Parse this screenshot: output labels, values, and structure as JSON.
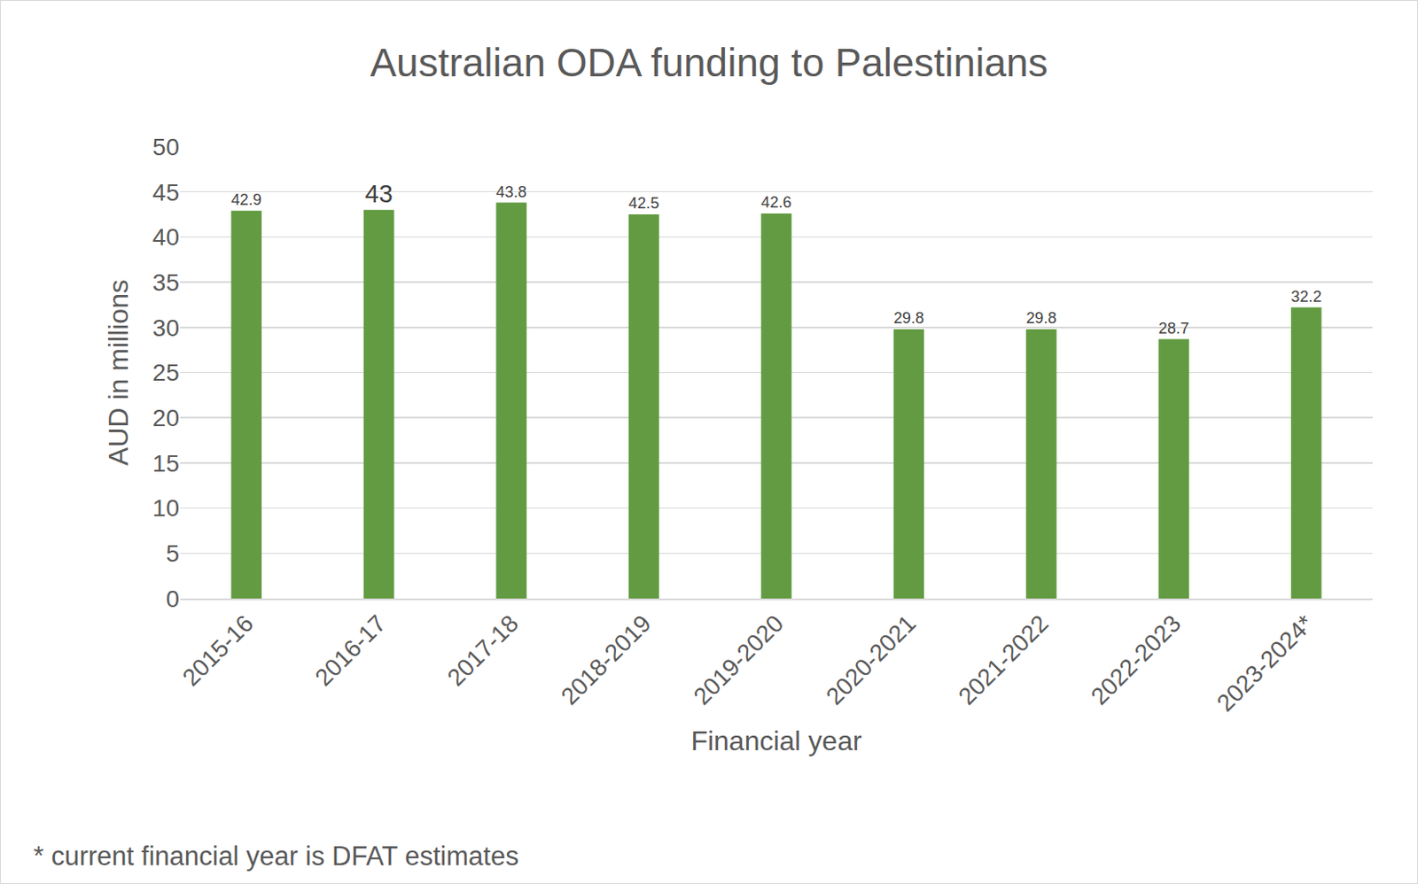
{
  "chart_data": {
    "type": "bar",
    "title": "Australian ODA funding to Palestinians",
    "x_label": "Financial year",
    "y_label": "AUD in millions",
    "footnote": "* current financial year is DFAT estimates",
    "categories": [
      "2015-16",
      "2016-17",
      "2017-18",
      "2018-2019",
      "2019-2020",
      "2020-2021",
      "2021-2022",
      "2022-2023",
      "2023-2024*"
    ],
    "values": [
      42.9,
      43,
      43.8,
      42.5,
      42.6,
      29.8,
      29.8,
      28.7,
      32.2
    ],
    "color": "#629b41",
    "ylim": [
      0,
      50
    ],
    "yticks": [
      0,
      5,
      10,
      15,
      20,
      25,
      30,
      35,
      40,
      45,
      50
    ],
    "grid": true,
    "data_labels": true
  }
}
